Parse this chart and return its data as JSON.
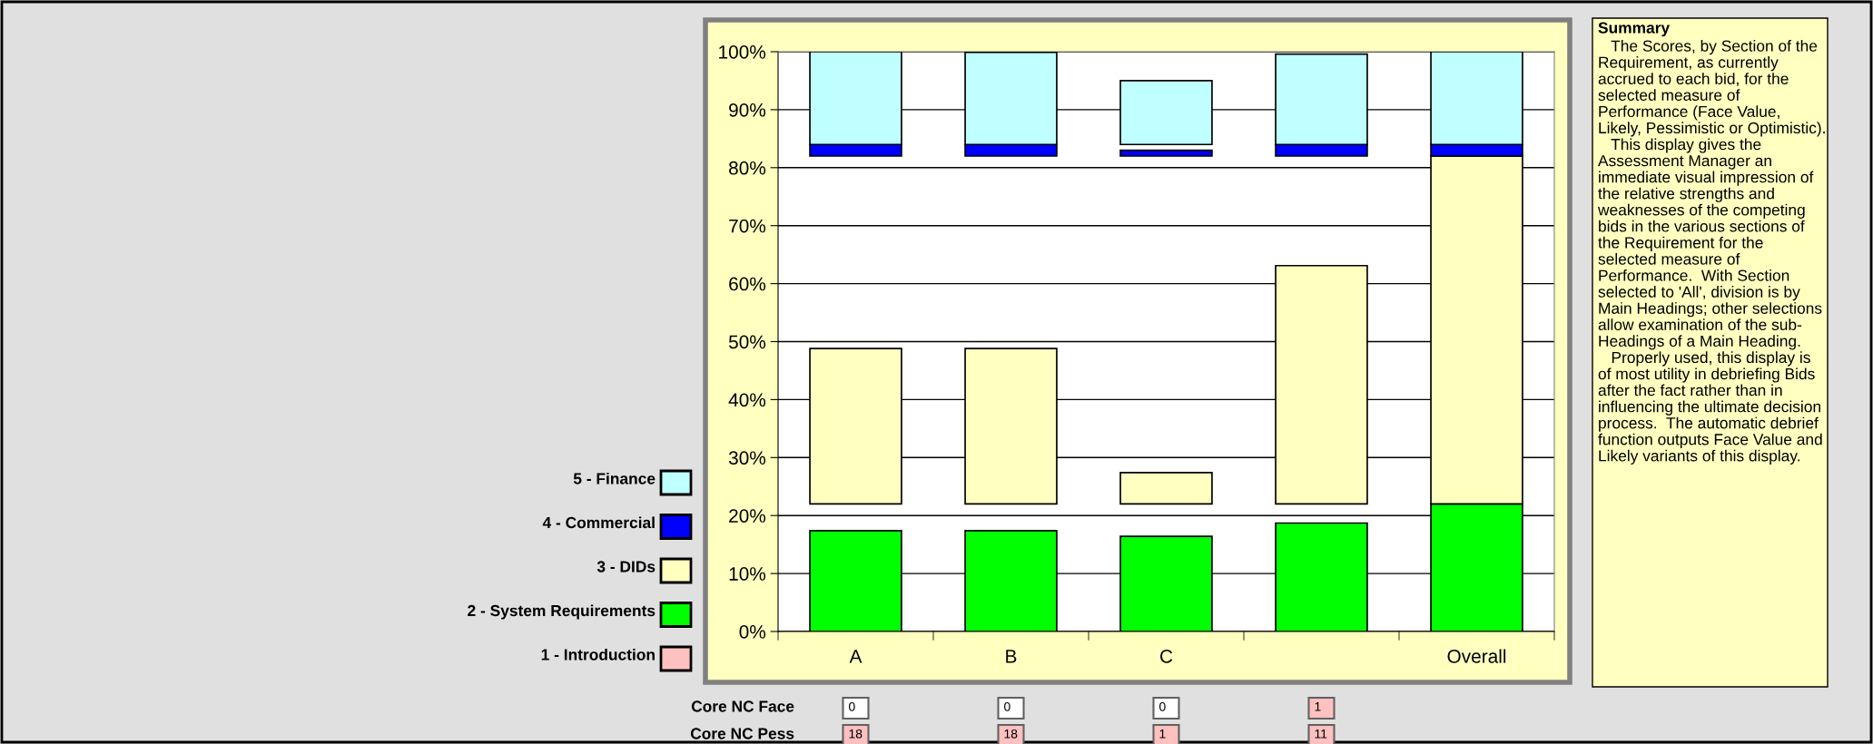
{
  "chart_data": {
    "type": "bar",
    "categories": [
      "A",
      "B",
      "C",
      null,
      "Overall"
    ],
    "series": [
      {
        "name": "1 - Introduction",
        "color": "#ffc0c0",
        "values": [
          0,
          0,
          0,
          0,
          0
        ]
      },
      {
        "name": "2 - System Requirements",
        "color": "#00ff00",
        "base": [
          0,
          0,
          0,
          0,
          0
        ],
        "values": [
          17.4,
          17.4,
          16.4,
          18.7,
          22
        ]
      },
      {
        "name": "3 - DIDs",
        "color": "#ffffc0",
        "base": [
          22,
          22,
          22,
          22,
          22
        ],
        "values": [
          26.8,
          26.8,
          5.4,
          41.1,
          60
        ]
      },
      {
        "name": "4 - Commercial",
        "color": "#0000ff",
        "base": [
          82,
          82,
          82,
          82,
          82
        ],
        "values": [
          2,
          2,
          1,
          2,
          2
        ]
      },
      {
        "name": "5 - Finance",
        "color": "#c0ffff",
        "base": [
          84,
          84,
          84,
          84,
          84
        ],
        "values": [
          16,
          15.9,
          11,
          15.6,
          16
        ]
      }
    ],
    "ylim": [
      0,
      100
    ],
    "yticks": [
      {
        "value": 0,
        "label": "0%"
      },
      {
        "value": 10,
        "label": "10%"
      },
      {
        "value": 20,
        "label": "20%"
      },
      {
        "value": 30,
        "label": "30%"
      },
      {
        "value": 40,
        "label": "40%"
      },
      {
        "value": 50,
        "label": "50%"
      },
      {
        "value": 60,
        "label": "60%"
      },
      {
        "value": 70,
        "label": "70%"
      },
      {
        "value": 80,
        "label": "80%"
      },
      {
        "value": 90,
        "label": "90%"
      },
      {
        "value": 100,
        "label": "100%"
      }
    ],
    "grid": "y",
    "legend": "left",
    "annotations": [
      "Summary",
      "   The Scores, by Section of the\nRequirement, as currently\naccrued to each bid, for the\nselected measure of\nPerformance (Face Value,\nLikely, Pessimistic or Optimistic).\n   This display gives the\nAssessment Manager an\nimmediate visual impression of\nthe relative strengths and\nweaknesses of the competing\nbids in the various sections of\nthe Requirement for the\nselected measure of\nPerformance.  With Section\nselected to 'All', division is by\nMain Headings; other selections\nallow examination of the sub-\nHeadings of a Main Heading.\n   Properly used, this display is\nof most utility in debriefing Bids\nafter the fact rather than in\ninfluencing the ultimate decision\nprocess.  The automatic debrief\nfunction outputs Face Value and\nLikely variants of this display.",
      "Core NC Face",
      "0",
      "0",
      "0",
      "1",
      "Core NC Pess",
      "18",
      "18",
      "1",
      "11"
    ]
  }
}
